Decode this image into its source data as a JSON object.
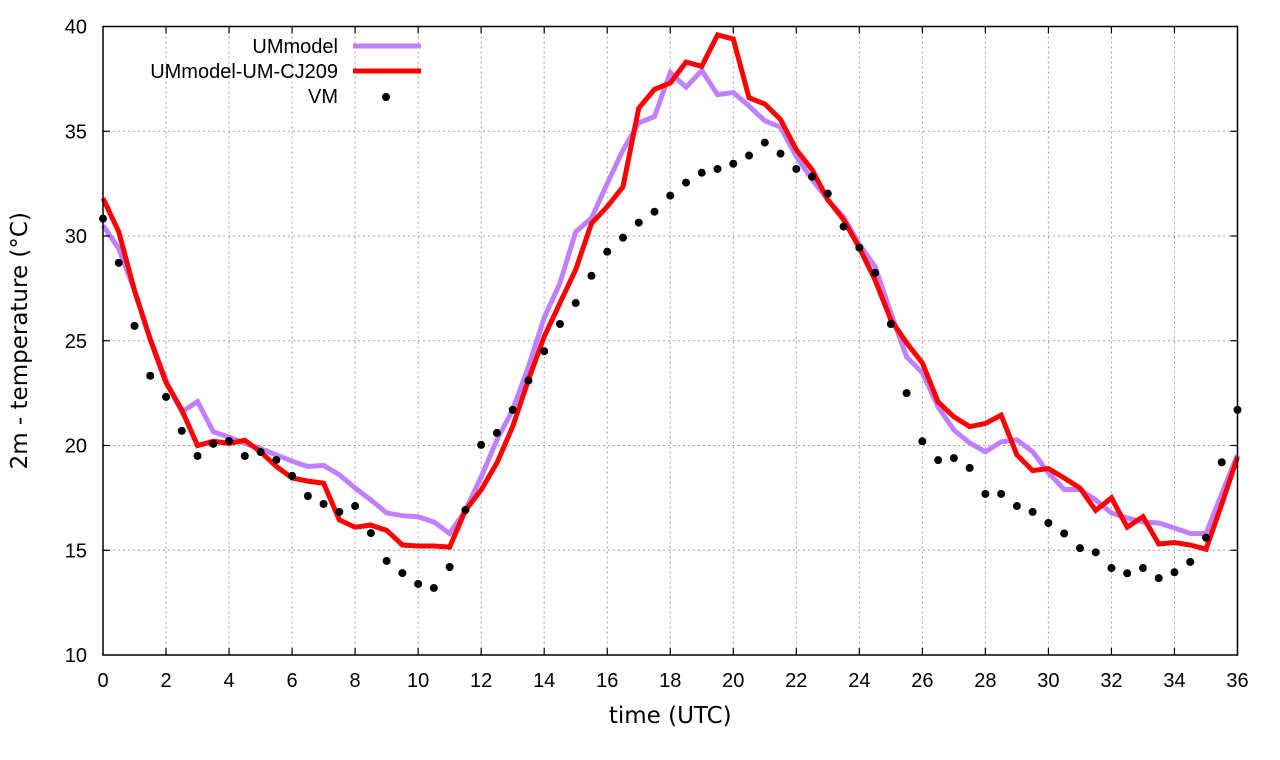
{
  "chart_data": {
    "type": "line",
    "title": "",
    "xlabel": "time (UTC)",
    "ylabel": "2m - temperature (°C)",
    "xlim": [
      0,
      36
    ],
    "ylim": [
      10,
      40
    ],
    "xticks": [
      0,
      2,
      4,
      6,
      8,
      10,
      12,
      14,
      16,
      18,
      20,
      22,
      24,
      26,
      28,
      30,
      32,
      34,
      36
    ],
    "yticks": [
      10,
      15,
      20,
      25,
      30,
      35,
      40
    ],
    "grid": true,
    "legend_position": "top-left",
    "x": [
      0,
      0.5,
      1,
      1.5,
      2,
      2.5,
      3,
      3.5,
      4,
      4.5,
      5,
      5.5,
      6,
      6.5,
      7,
      7.5,
      8,
      8.5,
      9,
      9.5,
      10,
      10.5,
      11,
      11.5,
      12,
      12.5,
      13,
      13.5,
      14,
      14.5,
      15,
      15.5,
      16,
      16.5,
      17,
      17.5,
      18,
      18.5,
      19,
      19.5,
      20,
      20.5,
      21,
      21.5,
      22,
      22.5,
      23,
      23.5,
      24,
      24.5,
      25,
      25.5,
      26,
      26.5,
      27,
      27.5,
      28,
      28.5,
      29,
      29.5,
      30,
      30.5,
      31,
      31.5,
      32,
      32.5,
      33,
      33.5,
      34,
      34.5,
      35,
      35.5,
      36
    ],
    "series": [
      {
        "name": "UMmodel",
        "style": "line",
        "color": "#c080ff",
        "values": [
          30.5,
          29.4,
          27.4,
          25.1,
          23.1,
          21.6,
          22.1,
          20.65,
          20.4,
          20.1,
          19.85,
          19.55,
          19.25,
          19.0,
          19.05,
          18.6,
          17.97,
          17.4,
          16.78,
          16.65,
          16.6,
          16.35,
          15.8,
          16.9,
          18.5,
          20.27,
          21.7,
          23.75,
          26.1,
          27.75,
          30.2,
          30.85,
          32.5,
          34.1,
          35.4,
          35.7,
          37.8,
          37.1,
          37.9,
          36.75,
          36.85,
          36.2,
          35.5,
          35.2,
          33.8,
          32.7,
          31.73,
          30.9,
          29.6,
          28.53,
          26.33,
          24.23,
          23.47,
          21.84,
          20.74,
          20.12,
          19.7,
          20.17,
          20.27,
          19.7,
          18.7,
          17.9,
          17.9,
          17.4,
          16.78,
          16.54,
          16.35,
          16.3,
          16.06,
          15.8,
          15.8,
          17.7,
          19.55
        ]
      },
      {
        "name": "UMmodel-UM-CJ209",
        "style": "line",
        "color": "#ff0000",
        "values": [
          31.8,
          30.2,
          27.4,
          25.05,
          23.0,
          21.7,
          20.0,
          20.2,
          20.1,
          20.25,
          19.7,
          19.0,
          18.45,
          18.3,
          18.2,
          16.45,
          16.1,
          16.2,
          15.95,
          15.25,
          15.2,
          15.2,
          15.15,
          16.9,
          17.88,
          19.17,
          20.9,
          23.13,
          25.2,
          26.8,
          28.4,
          30.6,
          31.4,
          32.35,
          36.1,
          37.0,
          37.3,
          38.3,
          38.1,
          39.6,
          39.4,
          36.6,
          36.3,
          35.56,
          34.12,
          33.17,
          31.73,
          30.78,
          29.44,
          27.9,
          26.0,
          24.9,
          23.94,
          22.08,
          21.37,
          20.9,
          21.05,
          21.45,
          19.55,
          18.8,
          18.9,
          18.45,
          17.97,
          16.9,
          17.5,
          16.1,
          16.6,
          15.3,
          15.37,
          15.25,
          15.05,
          17.2,
          19.45
        ]
      },
      {
        "name": "VM",
        "style": "points",
        "color": "#000000",
        "values": [
          30.83,
          28.72,
          25.71,
          23.33,
          22.32,
          20.7,
          19.5,
          20.08,
          20.22,
          19.5,
          19.69,
          19.31,
          18.55,
          17.59,
          17.21,
          16.83,
          17.11,
          15.82,
          14.49,
          13.91,
          13.39,
          13.2,
          14.2,
          16.92,
          20.03,
          20.6,
          21.7,
          23.1,
          24.5,
          25.8,
          26.8,
          28.1,
          29.25,
          29.92,
          30.64,
          31.16,
          31.93,
          32.55,
          33.02,
          33.2,
          33.45,
          33.84,
          34.46,
          33.93,
          33.2,
          32.83,
          32.02,
          30.45,
          29.44,
          28.24,
          25.8,
          22.5,
          20.2,
          19.3,
          19.4,
          18.93,
          17.69,
          17.69,
          17.11,
          16.83,
          16.3,
          15.8,
          15.1,
          14.9,
          14.15,
          13.9,
          14.15,
          13.67,
          13.95,
          14.44,
          15.6,
          19.2,
          21.7
        ]
      }
    ]
  }
}
